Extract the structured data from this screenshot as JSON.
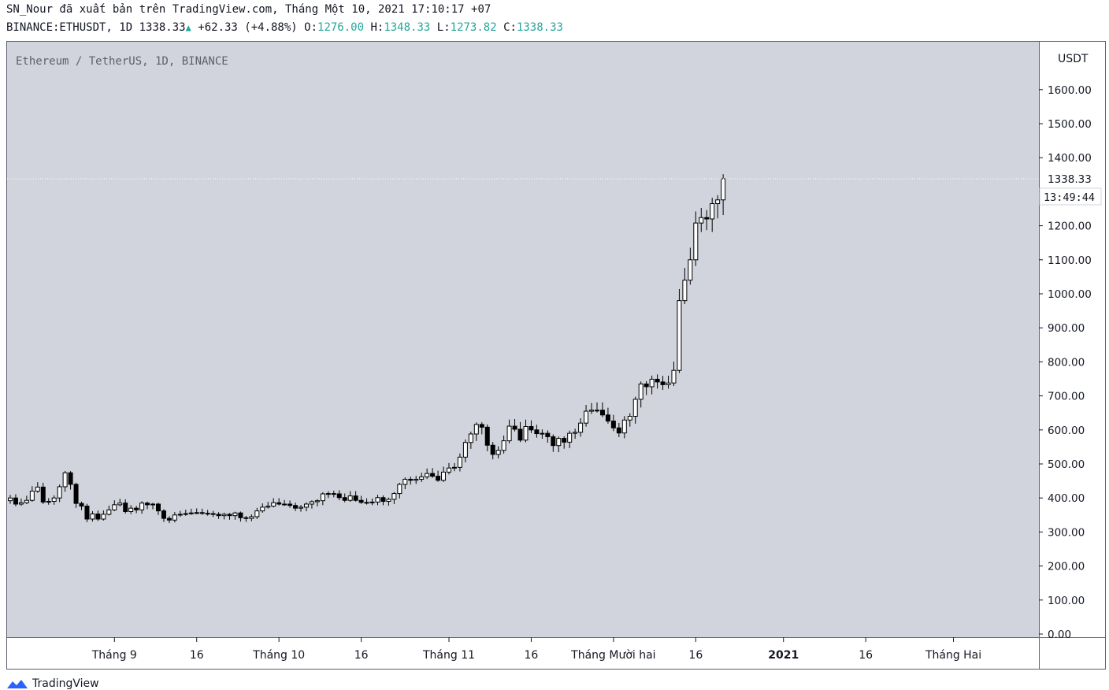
{
  "header": {
    "published_line": "SN_Nour đã xuất bản trên TradingView.com, Tháng Một 10, 2021 17:10:17 +07",
    "symbol": "BINANCE:ETHUSDT,",
    "interval": "1D",
    "last": "1338.33",
    "change": "+62.33 (+4.88%)",
    "o_label": "O:",
    "o_value": "1276.00",
    "h_label": "H:",
    "h_value": "1348.33",
    "l_label": "L:",
    "l_value": "1273.82",
    "c_label": "C:",
    "c_value": "1338.33"
  },
  "brand": {
    "name": "TradingView",
    "logo_icon": "tradingview-logo-icon"
  },
  "colors": {
    "pane_bg": "#d1d4dc",
    "up_fill": "#ffffff",
    "down_fill": "#000000",
    "wick": "#000000",
    "accent": "#26a69a"
  },
  "chart_data": {
    "type": "candlestick",
    "title": "Ethereum / TetherUS, 1D, BINANCE",
    "currency": "USDT",
    "ylim": [
      0,
      1680
    ],
    "y_ticks": [
      "0.00",
      "100.00",
      "200.00",
      "300.00",
      "400.00",
      "500.00",
      "600.00",
      "700.00",
      "800.00",
      "900.00",
      "1000.00",
      "1100.00",
      "1200.00",
      "1300.00",
      "1400.00",
      "1500.00",
      "1600.00"
    ],
    "last_price_label": "1338.33",
    "countdown": "13:49:44",
    "x_axis": {
      "start_date": "2020-08-13",
      "end_date": "2021-02-16",
      "ticks": [
        {
          "label": "Tháng 9",
          "date": "2020-09-01",
          "bold": false
        },
        {
          "label": "16",
          "date": "2020-09-16",
          "bold": false
        },
        {
          "label": "Tháng 10",
          "date": "2020-10-01",
          "bold": false
        },
        {
          "label": "16",
          "date": "2020-10-16",
          "bold": false
        },
        {
          "label": "Tháng 11",
          "date": "2020-11-01",
          "bold": false
        },
        {
          "label": "16",
          "date": "2020-11-16",
          "bold": false
        },
        {
          "label": "Tháng Mười hai",
          "date": "2020-12-01",
          "bold": false
        },
        {
          "label": "16",
          "date": "2020-12-16",
          "bold": false
        },
        {
          "label": "2021",
          "date": "2021-01-01",
          "bold": true
        },
        {
          "label": "16",
          "date": "2021-01-16",
          "bold": false
        },
        {
          "label": "Tháng Hai",
          "date": "2021-02-01",
          "bold": false
        }
      ]
    },
    "ohlc_start_date": "2020-08-13",
    "closes": [
      400,
      382,
      386,
      393,
      420,
      432,
      388,
      390,
      400,
      433,
      474,
      440,
      384,
      376,
      338,
      353,
      338,
      352,
      365,
      380,
      385,
      360,
      370,
      365,
      385,
      380,
      382,
      362,
      340,
      335,
      350,
      352,
      354,
      356,
      357,
      355,
      354,
      352,
      348,
      352,
      348,
      356,
      342,
      340,
      345,
      362,
      373,
      376,
      386,
      382,
      382,
      378,
      370,
      373,
      382,
      389,
      392,
      412,
      413,
      412,
      401,
      393,
      406,
      393,
      387,
      386,
      388,
      401,
      390,
      396,
      413,
      440,
      455,
      452,
      455,
      462,
      472,
      464,
      452,
      476,
      488,
      490,
      520,
      563,
      588,
      616,
      608,
      555,
      528,
      540,
      568,
      611,
      602,
      570,
      610,
      600,
      589,
      590,
      580,
      554,
      575,
      564,
      590,
      593,
      620,
      655,
      658,
      658,
      644,
      626,
      606,
      591,
      629,
      640,
      690,
      735,
      727,
      749,
      741,
      733,
      738,
      775,
      980,
      1040,
      1100,
      1208,
      1224,
      1220,
      1265,
      1276,
      1338
    ]
  }
}
